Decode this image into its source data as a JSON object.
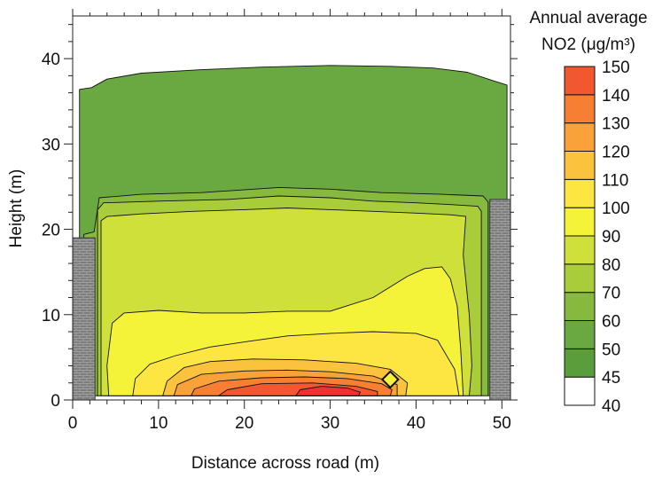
{
  "chart_data": {
    "type": "heatmap",
    "subtype": "filled-contour",
    "title": "",
    "xlabel": "Distance across road (m)",
    "ylabel": "Height (m)",
    "xlim": [
      0,
      51
    ],
    "ylim": [
      0,
      45
    ],
    "x_ticks": [
      0,
      10,
      20,
      30,
      40,
      50
    ],
    "y_ticks": [
      0,
      10,
      20,
      30,
      40
    ],
    "x_tick_labels": [
      "0",
      "10",
      "20",
      "30",
      "40",
      "50"
    ],
    "y_tick_labels": [
      "0",
      "10",
      "20",
      "30",
      "40"
    ],
    "legend": {
      "title_line1": "Annual average",
      "title_line2": "NO2 (μg/m³)",
      "levels": [
        40,
        45,
        50,
        60,
        70,
        80,
        90,
        100,
        110,
        120,
        130,
        140,
        150
      ],
      "labels": [
        "40",
        "45",
        "50",
        "60",
        "70",
        "80",
        "90",
        "100",
        "110",
        "120",
        "130",
        "140",
        "150"
      ],
      "colors": [
        "#ffffff",
        "#5a9e3c",
        "#6aa841",
        "#86b93d",
        "#a9cc3a",
        "#cfe03a",
        "#f4f33a",
        "#fde642",
        "#fbc23e",
        "#f9a23a",
        "#f67f33",
        "#f2582f",
        "#ef3131"
      ]
    },
    "buildings": [
      {
        "name": "left",
        "x0": 0,
        "x1": 2.6,
        "y0": 0,
        "y1": 19
      },
      {
        "name": "right",
        "x0": 48.6,
        "x1": 51,
        "y0": 0,
        "y1": 23.5
      }
    ],
    "contour_regions": [
      {
        "level": 50,
        "points": [
          [
            0.8,
            0.5
          ],
          [
            0.8,
            36.4
          ],
          [
            2.2,
            36.6
          ],
          [
            4,
            37.6
          ],
          [
            8,
            38.3
          ],
          [
            15,
            38.7
          ],
          [
            22,
            39.0
          ],
          [
            30,
            39.2
          ],
          [
            37,
            39.1
          ],
          [
            42,
            38.9
          ],
          [
            46,
            38.4
          ],
          [
            49,
            37.4
          ],
          [
            50.6,
            36.9
          ],
          [
            50.6,
            0.5
          ]
        ]
      },
      {
        "level": 60,
        "points": [
          [
            1.3,
            0.5
          ],
          [
            1.3,
            19.4
          ],
          [
            2.5,
            19.7
          ],
          [
            3.1,
            23.7
          ],
          [
            8,
            24.1
          ],
          [
            15,
            24.3
          ],
          [
            24,
            24.9
          ],
          [
            30,
            24.7
          ],
          [
            36,
            24.3
          ],
          [
            43,
            24.1
          ],
          [
            47.8,
            23.9
          ],
          [
            48.4,
            23.2
          ],
          [
            48.4,
            0.5
          ]
        ]
      },
      {
        "level": 70,
        "points": [
          [
            2.9,
            0.5
          ],
          [
            2.9,
            22.3
          ],
          [
            3.6,
            23.1
          ],
          [
            10,
            23.3
          ],
          [
            18,
            23.5
          ],
          [
            24,
            23.9
          ],
          [
            30,
            23.7
          ],
          [
            35,
            23.3
          ],
          [
            40,
            23.1
          ],
          [
            44,
            22.9
          ],
          [
            47.2,
            22.7
          ],
          [
            47.6,
            22.1
          ],
          [
            47.6,
            0.5
          ]
        ]
      },
      {
        "level": 80,
        "points": [
          [
            3.3,
            0.5
          ],
          [
            3.3,
            21.0
          ],
          [
            4,
            21.5
          ],
          [
            8,
            21.8
          ],
          [
            14,
            22.1
          ],
          [
            20,
            22.3
          ],
          [
            25,
            22.5
          ],
          [
            30,
            22.3
          ],
          [
            35,
            22.1
          ],
          [
            40,
            21.9
          ],
          [
            44,
            21.7
          ],
          [
            45.8,
            21.5
          ],
          [
            45.5,
            17
          ],
          [
            46.2,
            10
          ],
          [
            46.5,
            4
          ],
          [
            46.2,
            0.5
          ]
        ]
      },
      {
        "level": 90,
        "points": [
          [
            4.2,
            0.5
          ],
          [
            4,
            4
          ],
          [
            4.6,
            9
          ],
          [
            6,
            10.2
          ],
          [
            10,
            10.5
          ],
          [
            15,
            10.2
          ],
          [
            20,
            10.2
          ],
          [
            25,
            10.4
          ],
          [
            30,
            10.4
          ],
          [
            35,
            12.0
          ],
          [
            39,
            14.5
          ],
          [
            41,
            15.4
          ],
          [
            43,
            15.6
          ],
          [
            44,
            14.2
          ],
          [
            44.8,
            11
          ],
          [
            45.2,
            6
          ],
          [
            45.5,
            0.5
          ]
        ]
      },
      {
        "level": 100,
        "points": [
          [
            7,
            0.5
          ],
          [
            7.3,
            2.5
          ],
          [
            9,
            4.2
          ],
          [
            12,
            5.2
          ],
          [
            16,
            6.2
          ],
          [
            20,
            6.8
          ],
          [
            25,
            7.5
          ],
          [
            30,
            7.8
          ],
          [
            35,
            8.0
          ],
          [
            40,
            7.8
          ],
          [
            42.5,
            7.0
          ],
          [
            44.5,
            3.6
          ],
          [
            45,
            0.5
          ]
        ]
      },
      {
        "level": 110,
        "points": [
          [
            10.5,
            0.5
          ],
          [
            11,
            2.2
          ],
          [
            13,
            3.8
          ],
          [
            16,
            4.5
          ],
          [
            21,
            4.8
          ],
          [
            27,
            4.7
          ],
          [
            33,
            4.3
          ],
          [
            37,
            3.6
          ],
          [
            39,
            2.0
          ],
          [
            38.8,
            0.5
          ]
        ]
      },
      {
        "level": 120,
        "points": [
          [
            11.8,
            0.5
          ],
          [
            12.2,
            1.8
          ],
          [
            15,
            3.0
          ],
          [
            20,
            3.4
          ],
          [
            25,
            3.5
          ],
          [
            30,
            3.3
          ],
          [
            35,
            2.8
          ],
          [
            37.8,
            1.8
          ],
          [
            37.8,
            0.5
          ]
        ]
      },
      {
        "level": 130,
        "points": [
          [
            13.8,
            0.5
          ],
          [
            14.2,
            1.3
          ],
          [
            17,
            2.2
          ],
          [
            22,
            2.6
          ],
          [
            27,
            2.7
          ],
          [
            32,
            2.5
          ],
          [
            36,
            1.9
          ],
          [
            37.2,
            1.2
          ],
          [
            37,
            0.5
          ]
        ]
      },
      {
        "level": 140,
        "points": [
          [
            17,
            0.5
          ],
          [
            18,
            1.2
          ],
          [
            22,
            1.9
          ],
          [
            28,
            2.0
          ],
          [
            33,
            1.6
          ],
          [
            35.5,
            1.0
          ],
          [
            35.5,
            0.5
          ]
        ]
      },
      {
        "level": 150,
        "points": [
          [
            26,
            0.5
          ],
          [
            26.5,
            1.2
          ],
          [
            29,
            1.6
          ],
          [
            32,
            1.4
          ],
          [
            33.5,
            0.9
          ],
          [
            33.3,
            0.5
          ]
        ]
      }
    ],
    "marker": {
      "shape": "diamond",
      "x": 37,
      "y": 2.4
    }
  }
}
